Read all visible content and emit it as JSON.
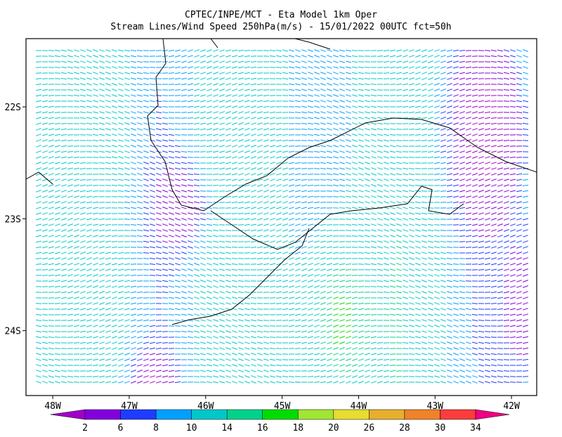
{
  "header": {
    "title": "CPTEC/INPE/MCT -  Eta Model 1km Oper",
    "subtitle": "Stream Lines/Wind Speed 250hPa(m/s) - 15/01/2022 00UTC fct=50h"
  },
  "map": {
    "xlim": [
      -48.35,
      -41.67
    ],
    "ylim": [
      -24.58,
      -21.39
    ],
    "xticks": [
      {
        "value": -48,
        "label": "48W"
      },
      {
        "value": -47,
        "label": "47W"
      },
      {
        "value": -46,
        "label": "46W"
      },
      {
        "value": -45,
        "label": "45W"
      },
      {
        "value": -44,
        "label": "44W"
      },
      {
        "value": -43,
        "label": "43W"
      },
      {
        "value": -42,
        "label": "42W"
      }
    ],
    "yticks": [
      {
        "value": -22,
        "label": "22S"
      },
      {
        "value": -23,
        "label": "23S"
      },
      {
        "value": -24,
        "label": "24S"
      }
    ]
  },
  "colorbar": {
    "labels": [
      2,
      6,
      8,
      10,
      14,
      16,
      18,
      20,
      26,
      28,
      30,
      34
    ],
    "colors": [
      "#a000c8",
      "#8200dc",
      "#1e3cff",
      "#00a0ff",
      "#00c8c8",
      "#00d28c",
      "#00dc00",
      "#a0e632",
      "#e6dc32",
      "#e6af2d",
      "#f08228",
      "#fa3c3c",
      "#f00082"
    ]
  }
}
